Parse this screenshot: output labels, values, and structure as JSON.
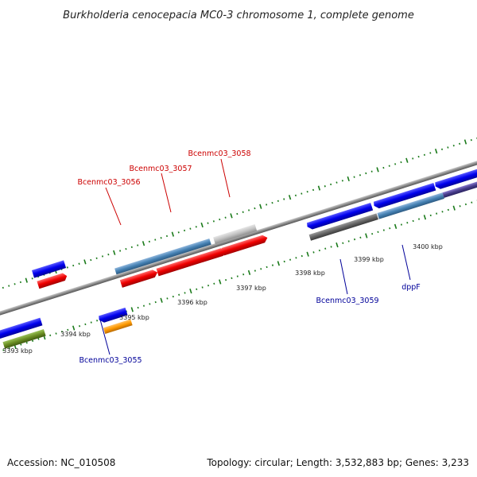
{
  "header": {
    "title": "Burkholderia cenocepacia MC0-3 chromosome 1, complete genome"
  },
  "footer": {
    "accession": "Accession: NC_010508",
    "topology": "Topology: circular; Length: 3,532,883 bp; Genes: 3,233"
  },
  "colors": {
    "background": "#ffffff",
    "backbone": "#888888",
    "tick": "#1a7a1a",
    "label_forward": "#cc0000",
    "label_reverse": "#000099"
  },
  "axis": {
    "tick_labels": [
      "3393 kbp",
      "3394 kbp",
      "3395 kbp",
      "3396 kbp",
      "3397 kbp",
      "3398 kbp",
      "3399 kbp",
      "3400 kbp"
    ]
  },
  "gene_labels": {
    "forward": [
      "Bcenmc03_3056",
      "Bcenmc03_3057",
      "Bcenmc03_3058"
    ],
    "reverse": [
      "Bcenmc03_3055",
      "Bcenmc03_3059",
      "dppF"
    ]
  }
}
